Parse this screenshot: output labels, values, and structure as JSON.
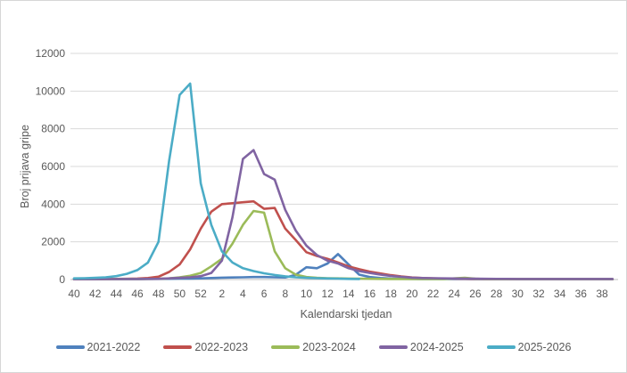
{
  "chart": {
    "y_axis_title": "Broj prijava gripe",
    "x_axis_title": "Kalendarski tjedan",
    "text_color": "#595959",
    "gridline_color": "#d9d9d9",
    "axis_line_color": "#bfbfbf",
    "frame_border_color": "#d6d6d6"
  },
  "chart_data": {
    "type": "line",
    "title": "",
    "xlabel": "Kalendarski tjedan",
    "ylabel": "Broj prijava gripe",
    "ylim": [
      0,
      12000
    ],
    "y_ticks": [
      0,
      2000,
      4000,
      6000,
      8000,
      10000,
      12000
    ],
    "grid": true,
    "legend_position": "bottom",
    "categories": [
      40,
      41,
      42,
      43,
      44,
      45,
      46,
      47,
      48,
      49,
      50,
      51,
      52,
      1,
      2,
      3,
      4,
      5,
      6,
      7,
      8,
      9,
      10,
      11,
      12,
      13,
      14,
      15,
      16,
      17,
      18,
      19,
      20,
      21,
      22,
      23,
      24,
      25,
      26,
      27,
      28,
      29,
      30,
      31,
      32,
      33,
      34,
      35,
      36,
      37,
      38,
      39
    ],
    "x_tick_labels": [
      40,
      42,
      44,
      46,
      48,
      50,
      52,
      2,
      4,
      6,
      8,
      10,
      12,
      14,
      16,
      18,
      20,
      22,
      24,
      26,
      28,
      30,
      32,
      34,
      36,
      38
    ],
    "series": [
      {
        "name": "2021-2022",
        "color": "#4F81BD",
        "values": [
          20,
          20,
          20,
          25,
          25,
          30,
          30,
          35,
          35,
          40,
          45,
          50,
          60,
          80,
          100,
          110,
          120,
          130,
          130,
          120,
          110,
          250,
          650,
          600,
          850,
          1350,
          800,
          260,
          130,
          80,
          50,
          40,
          35,
          30,
          30,
          25,
          25,
          25,
          20,
          20,
          20,
          20,
          20,
          20,
          20,
          20,
          20,
          20,
          20,
          20,
          20,
          20
        ]
      },
      {
        "name": "2022-2023",
        "color": "#C0504D",
        "values": [
          25,
          25,
          30,
          30,
          35,
          40,
          50,
          80,
          150,
          400,
          800,
          1600,
          2700,
          3600,
          4000,
          4050,
          4100,
          4150,
          3750,
          3800,
          2700,
          2100,
          1450,
          1250,
          1100,
          900,
          700,
          550,
          420,
          320,
          230,
          160,
          110,
          80,
          60,
          50,
          45,
          40,
          35,
          30,
          30,
          25,
          25,
          25,
          25,
          25,
          25,
          25,
          25,
          25,
          25,
          25
        ]
      },
      {
        "name": "2023-2024",
        "color": "#9BBB59",
        "values": [
          20,
          20,
          20,
          25,
          25,
          30,
          30,
          35,
          40,
          60,
          120,
          200,
          350,
          700,
          1100,
          1900,
          2900,
          3640,
          3550,
          1500,
          600,
          260,
          130,
          90,
          70,
          60,
          50,
          45,
          40,
          35,
          30,
          30,
          25,
          25,
          25,
          30,
          60,
          90,
          45,
          25,
          20,
          20,
          20,
          20,
          20,
          20,
          20,
          20,
          20,
          20,
          20,
          20
        ]
      },
      {
        "name": "2024-2025",
        "color": "#8064A2",
        "values": [
          20,
          20,
          20,
          25,
          25,
          30,
          30,
          35,
          40,
          60,
          90,
          120,
          180,
          350,
          1000,
          3300,
          6400,
          6870,
          5600,
          5300,
          3700,
          2600,
          1800,
          1300,
          1000,
          850,
          600,
          450,
          350,
          260,
          190,
          140,
          100,
          80,
          70,
          60,
          55,
          50,
          45,
          40,
          35,
          35,
          30,
          30,
          30,
          30,
          30,
          30,
          30,
          30,
          30,
          30
        ]
      },
      {
        "name": "2025-2026",
        "color": "#4BACC6",
        "values": [
          60,
          70,
          90,
          120,
          180,
          300,
          500,
          900,
          2000,
          6300,
          9800,
          10400,
          5100,
          2900,
          1500,
          900,
          600,
          450,
          330,
          240,
          170,
          120,
          90,
          70,
          55,
          45,
          35,
          30
        ]
      }
    ]
  }
}
